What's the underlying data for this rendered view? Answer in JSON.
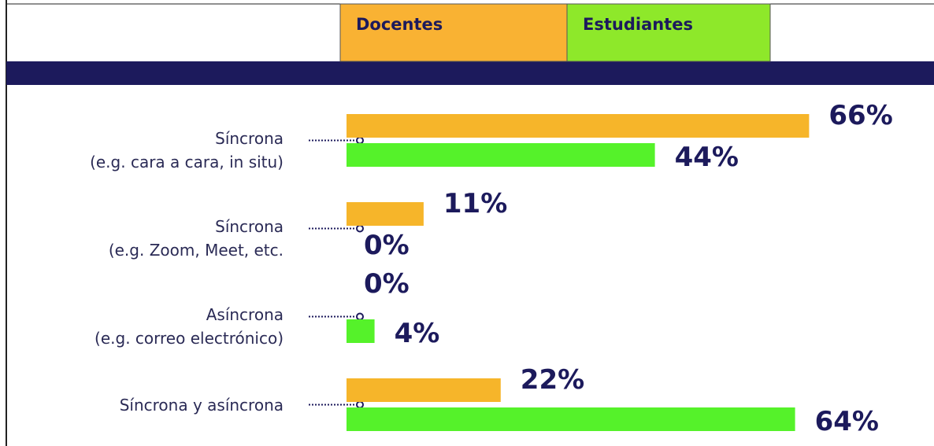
{
  "chart_data": {
    "type": "bar",
    "orientation": "horizontal",
    "categories": [
      "Síncrona\n(e.g. cara a cara, in situ)",
      "Síncrona\n(e.g. Zoom, Meet, etc.",
      "Asíncrona\n(e.g. correo electrónico)",
      "Síncrona y asíncrona"
    ],
    "series": [
      {
        "name": "Docentes",
        "color": "#f6b52a",
        "values": [
          66,
          11,
          0,
          22
        ],
        "value_labels": [
          "66%",
          "11%",
          "0%",
          "22%"
        ]
      },
      {
        "name": "Estudiantes",
        "color": "#55f22a",
        "values": [
          44,
          0,
          4,
          64
        ],
        "value_labels": [
          "44%",
          "0%",
          "4%",
          "64%"
        ]
      }
    ]
  }
}
